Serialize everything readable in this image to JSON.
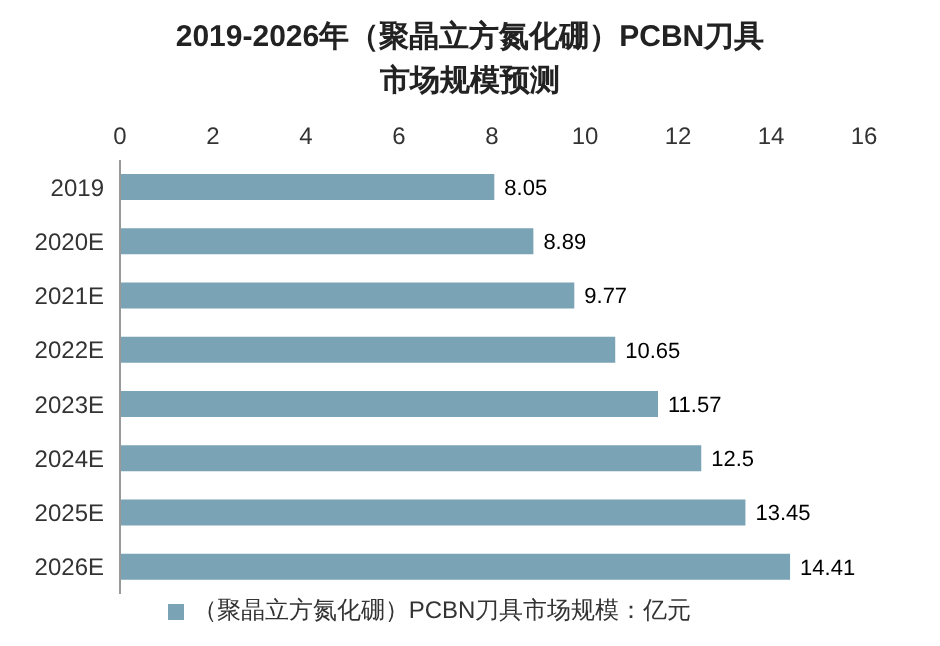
{
  "chart_data": {
    "type": "bar",
    "orientation": "horizontal",
    "title": "2019-2026年（聚晶立方氮化硼）PCBN刀具市场规模预测",
    "categories": [
      "2019",
      "2020E",
      "2021E",
      "2022E",
      "2023E",
      "2024E",
      "2025E",
      "2026E"
    ],
    "series": [
      {
        "name": "（聚晶立方氮化硼）PCBN刀具市场规模：亿元",
        "color": "#7aa3b5",
        "values": [
          8.05,
          8.89,
          9.77,
          10.65,
          11.57,
          12.5,
          13.45,
          14.41
        ]
      }
    ],
    "xlim": [
      0,
      16
    ],
    "xticks": [
      0,
      2,
      4,
      6,
      8,
      10,
      12,
      14,
      16
    ],
    "grid": false,
    "legend": "bottom",
    "data_labels": true
  }
}
